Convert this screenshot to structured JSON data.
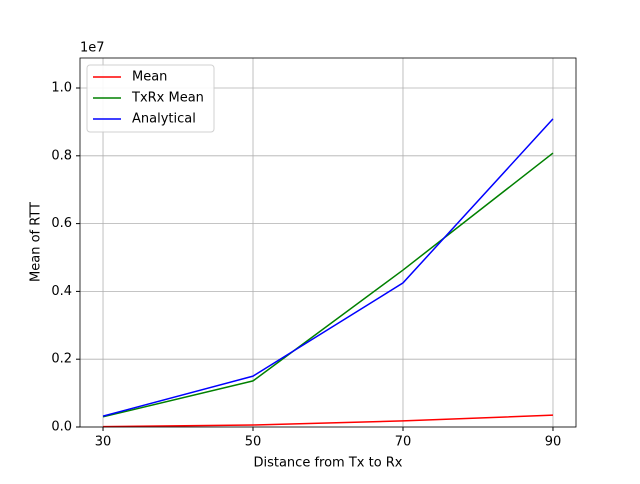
{
  "chart_data": {
    "type": "line",
    "x_label": "Distance from Tx to Rx",
    "y_label": "Mean of RTT",
    "y_offset_label": "1e7",
    "x": [
      30,
      50,
      70,
      90
    ],
    "series": [
      {
        "name": "Mean",
        "color": "#ff0000",
        "values": [
          0.001,
          0.006,
          0.018,
          0.035
        ]
      },
      {
        "name": "TxRx Mean",
        "color": "#008000",
        "values": [
          0.03,
          0.136,
          0.463,
          0.808
        ]
      },
      {
        "name": "Analytical",
        "color": "#0000ff",
        "values": [
          0.032,
          0.15,
          0.425,
          0.909
        ]
      }
    ],
    "xlim": [
      26.93,
      93.07
    ],
    "xticks": [
      30,
      50,
      70,
      90
    ],
    "ylim": [
      0,
      1.0885
    ],
    "yticks": [
      {
        "value": 0,
        "label": "0.0"
      },
      {
        "value": 0.2,
        "label": "0.2"
      },
      {
        "value": 0.4,
        "label": "0.4"
      },
      {
        "value": 0.6,
        "label": "0.6"
      },
      {
        "value": 0.8,
        "label": "0.8"
      },
      {
        "value": 1.0,
        "label": "1.0"
      }
    ],
    "grid": true,
    "legend": "upper-left"
  }
}
